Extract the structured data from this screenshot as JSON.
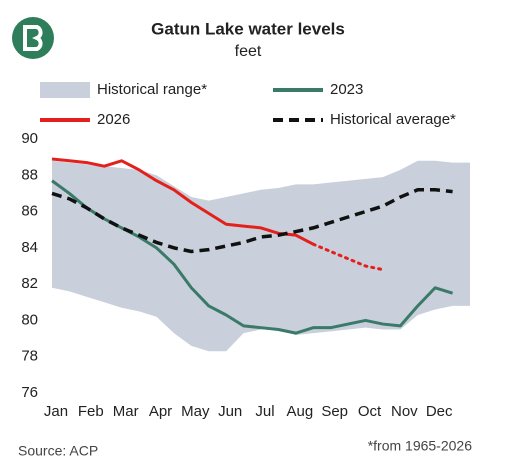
{
  "chart_data": {
    "type": "line",
    "title": "Gatun Lake water levels",
    "subtitle": "feet",
    "categories": [
      "Jan",
      null,
      "Feb",
      null,
      "Mar",
      null,
      "Apr",
      null,
      "May",
      null,
      "Jun",
      null,
      "Jul",
      null,
      "Aug",
      null,
      "Sep",
      null,
      "Oct",
      null,
      "Nov",
      null,
      "Dec",
      null
    ],
    "ylim": [
      76,
      90
    ],
    "yticks": [
      76,
      78,
      80,
      82,
      84,
      86,
      88,
      90
    ],
    "grid": false,
    "range": {
      "name": "Historical range*",
      "color": "#c9cfdb",
      "high": [
        88.8,
        88.7,
        88.6,
        88.5,
        88.4,
        88.3,
        88.0,
        87.4,
        86.8,
        86.6,
        86.8,
        87.0,
        87.2,
        87.3,
        87.5,
        87.5,
        87.6,
        87.7,
        87.8,
        87.9,
        88.3,
        88.8,
        88.8,
        88.7
      ],
      "low": [
        81.8,
        81.6,
        81.3,
        81.0,
        80.7,
        80.5,
        80.2,
        79.3,
        78.6,
        78.3,
        78.3,
        79.3,
        79.5,
        79.5,
        79.2,
        79.3,
        79.4,
        79.5,
        79.6,
        79.5,
        79.5,
        80.3,
        80.6,
        80.8
      ]
    },
    "series": [
      {
        "name": "2023",
        "color": "#3a7a68",
        "values": [
          87.7,
          87.0,
          86.2,
          85.6,
          85.1,
          84.6,
          84.0,
          83.1,
          81.8,
          80.8,
          80.3,
          79.7,
          79.6,
          79.5,
          79.3,
          79.6,
          79.6,
          79.8,
          80.0,
          79.8,
          79.7,
          80.8,
          81.8,
          81.5
        ]
      },
      {
        "name": "2026",
        "color": "#e3201b",
        "values": [
          88.9,
          88.8,
          88.7,
          88.5,
          88.8,
          88.3,
          87.7,
          87.2,
          86.5,
          85.9,
          85.3,
          85.2,
          85.1,
          84.8,
          84.7,
          84.2,
          null,
          null,
          null,
          null,
          null,
          null,
          null,
          null
        ],
        "projected": [
          null,
          null,
          null,
          null,
          null,
          null,
          null,
          null,
          null,
          null,
          null,
          null,
          null,
          null,
          null,
          84.2,
          83.8,
          83.4,
          83.0,
          82.8,
          null,
          null,
          null,
          null
        ]
      },
      {
        "name": "Historical average*",
        "color": "#111111",
        "dash": "dashed",
        "values": [
          87.0,
          86.7,
          86.2,
          85.6,
          85.1,
          84.7,
          84.3,
          84.0,
          83.8,
          83.9,
          84.1,
          84.3,
          84.6,
          84.7,
          84.9,
          85.1,
          85.4,
          85.7,
          86.0,
          86.3,
          86.8,
          87.2,
          87.2,
          87.1
        ]
      }
    ],
    "source": "Source: ACP",
    "footnote": "*from 1965-2026"
  }
}
